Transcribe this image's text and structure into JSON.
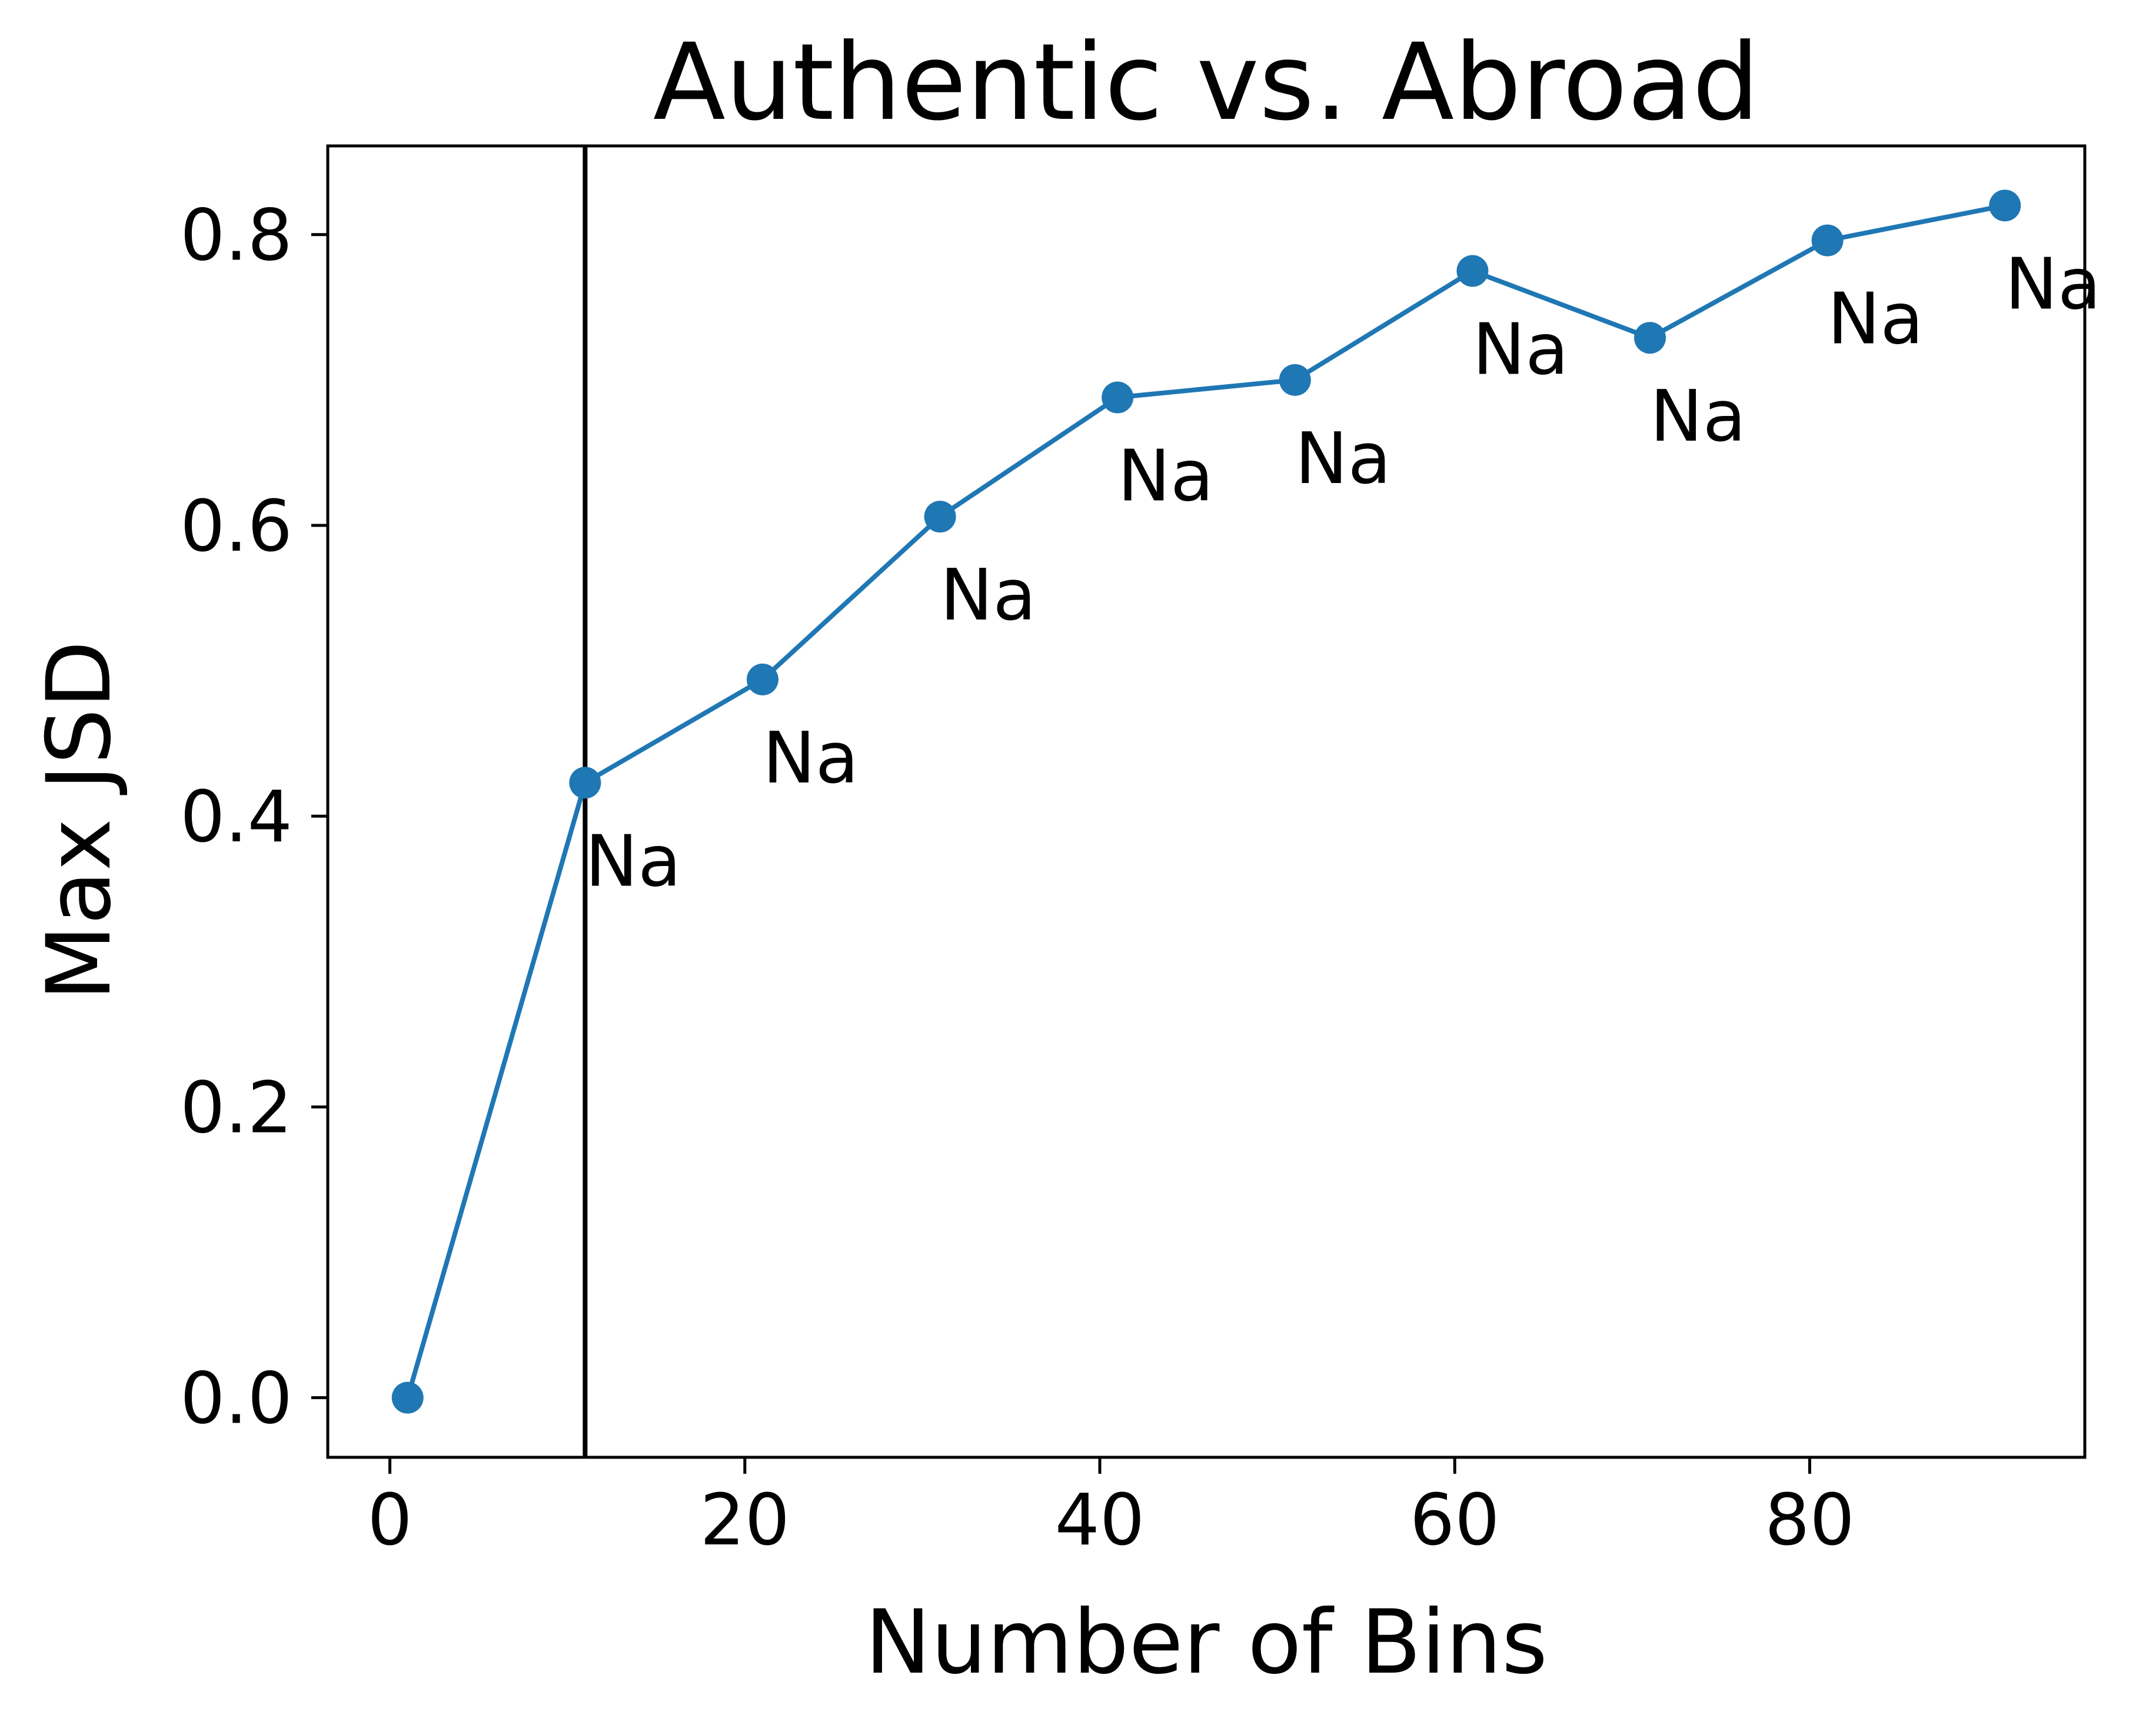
{
  "chart_data": {
    "type": "line",
    "title": "Authentic vs. Abroad",
    "xlabel": "Number of Bins",
    "ylabel": "Max JSD",
    "xlim": [
      -3.5,
      95.5
    ],
    "ylim": [
      -0.041,
      0.861
    ],
    "xticks": [
      0,
      20,
      40,
      60,
      80
    ],
    "xtick_labels": [
      "0",
      "20",
      "40",
      "60",
      "80"
    ],
    "yticks": [
      0.0,
      0.2,
      0.4,
      0.6,
      0.8
    ],
    "ytick_labels": [
      "0.0",
      "0.2",
      "0.4",
      "0.6",
      "0.8"
    ],
    "grid": false,
    "series": [
      {
        "x": [
          1,
          11,
          21,
          31,
          41,
          51,
          61,
          71,
          81,
          91
        ],
        "values": [
          0.0,
          0.423,
          0.494,
          0.606,
          0.688,
          0.7,
          0.775,
          0.729,
          0.796,
          0.82
        ],
        "color": "#1f77b4",
        "marker": "circle"
      }
    ],
    "vline": {
      "x": 11,
      "color": "#000000"
    },
    "annotations": [
      {
        "x": 11,
        "y": 0.423,
        "text": "Na"
      },
      {
        "x": 21,
        "y": 0.494,
        "text": "Na"
      },
      {
        "x": 31,
        "y": 0.606,
        "text": "Na"
      },
      {
        "x": 41,
        "y": 0.688,
        "text": "Na"
      },
      {
        "x": 51,
        "y": 0.7,
        "text": "Na"
      },
      {
        "x": 61,
        "y": 0.775,
        "text": "Na"
      },
      {
        "x": 71,
        "y": 0.729,
        "text": "Na"
      },
      {
        "x": 81,
        "y": 0.796,
        "text": "Na"
      },
      {
        "x": 91,
        "y": 0.82,
        "text": "Na"
      }
    ]
  }
}
